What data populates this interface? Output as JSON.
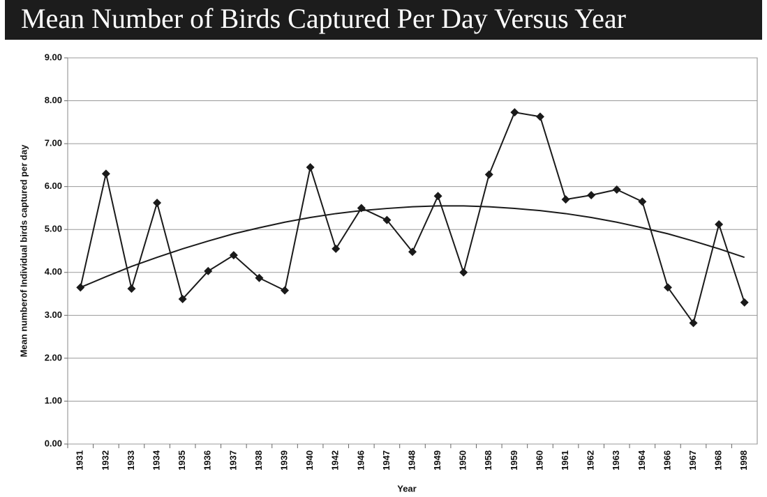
{
  "chart_data": {
    "type": "line",
    "title": "Mean Number of Birds Captured Per Day Versus Year",
    "x_label": "Year",
    "y_label": "Mean numberof Individual birds captured per day",
    "categories": [
      "1931",
      "1932",
      "1933",
      "1934",
      "1935",
      "1936",
      "1937",
      "1938",
      "1939",
      "1940",
      "1942",
      "1946",
      "1947",
      "1948",
      "1949",
      "1950",
      "1958",
      "1959",
      "1960",
      "1961",
      "1962",
      "1963",
      "1964",
      "1966",
      "1967",
      "1968",
      "1998"
    ],
    "series": [
      {
        "color": "#1a1a1a",
        "marker": "diamond",
        "values": [
          3.65,
          6.3,
          3.62,
          5.62,
          3.38,
          4.03,
          4.4,
          3.87,
          3.58,
          6.45,
          4.55,
          5.5,
          5.22,
          4.48,
          5.78,
          4.0,
          6.28,
          7.73,
          7.63,
          5.7,
          5.8,
          5.93,
          5.65,
          3.65,
          2.82,
          5.12,
          3.3
        ]
      },
      {
        "color": "#1a1a1a",
        "marker": "none",
        "values": [
          3.65,
          3.9,
          4.14,
          4.35,
          4.55,
          4.73,
          4.9,
          5.04,
          5.17,
          5.28,
          5.37,
          5.44,
          5.49,
          5.53,
          5.55,
          5.55,
          5.53,
          5.49,
          5.44,
          5.37,
          5.28,
          5.17,
          5.04,
          4.9,
          4.73,
          4.55,
          4.35
        ]
      }
    ],
    "ylim": [
      0,
      9
    ],
    "yticks": [
      {
        "value": 0,
        "label": "0.00"
      },
      {
        "value": 1,
        "label": "1.00"
      },
      {
        "value": 2,
        "label": "2.00"
      },
      {
        "value": 3,
        "label": "3.00"
      },
      {
        "value": 4,
        "label": "4.00"
      },
      {
        "value": 5,
        "label": "5.00"
      },
      {
        "value": 6,
        "label": "6.00"
      },
      {
        "value": 7,
        "label": "7.00"
      },
      {
        "value": 8,
        "label": "8.00"
      },
      {
        "value": 9,
        "label": "9.00"
      }
    ],
    "grid": true
  }
}
